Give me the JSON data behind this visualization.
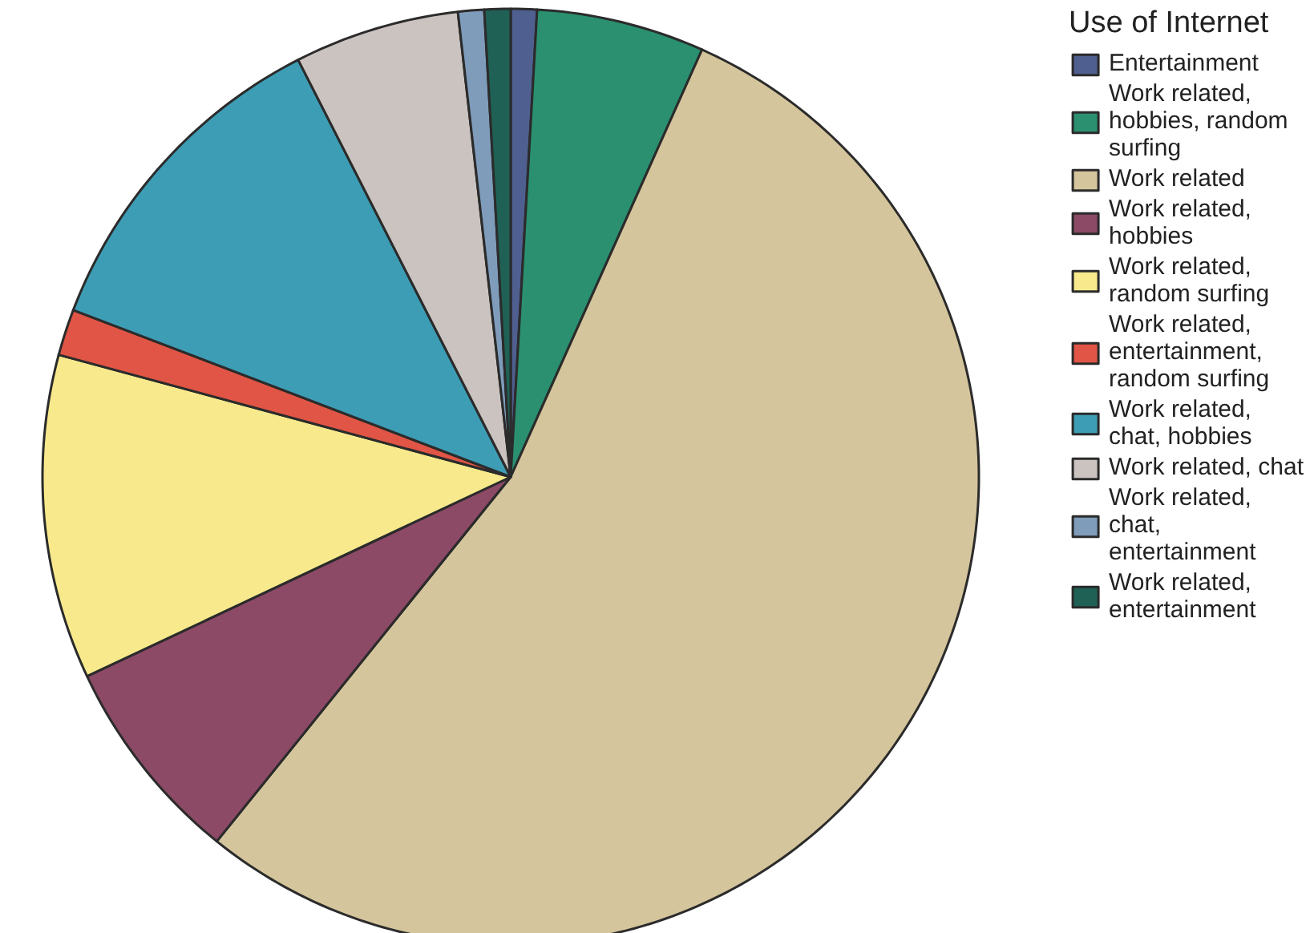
{
  "chart_data": {
    "type": "pie",
    "legend_title": "Use of Internet",
    "legend": "top right",
    "categories": [
      "Entertainment",
      "Work related, hobbies, random surfing",
      "Work related",
      "Work related, hobbies",
      "Work related, random surfing",
      "Work related, entertainment, random surfing",
      "Work related, chat, hobbies",
      "Work related, chat",
      "Work related, chat, entertainment",
      "Work related, entertainment"
    ],
    "values": [
      0.9,
      5.8,
      54.1,
      7.2,
      11.2,
      1.6,
      11.7,
      5.7,
      0.9,
      0.9
    ],
    "colors": [
      "#4f5f8f",
      "#2a9070",
      "#d5c59c",
      "#8c4a66",
      "#f8ea8c",
      "#e05545",
      "#3d9db5",
      "#cbc3bf",
      "#7f9cbb",
      "#1f6155"
    ]
  }
}
